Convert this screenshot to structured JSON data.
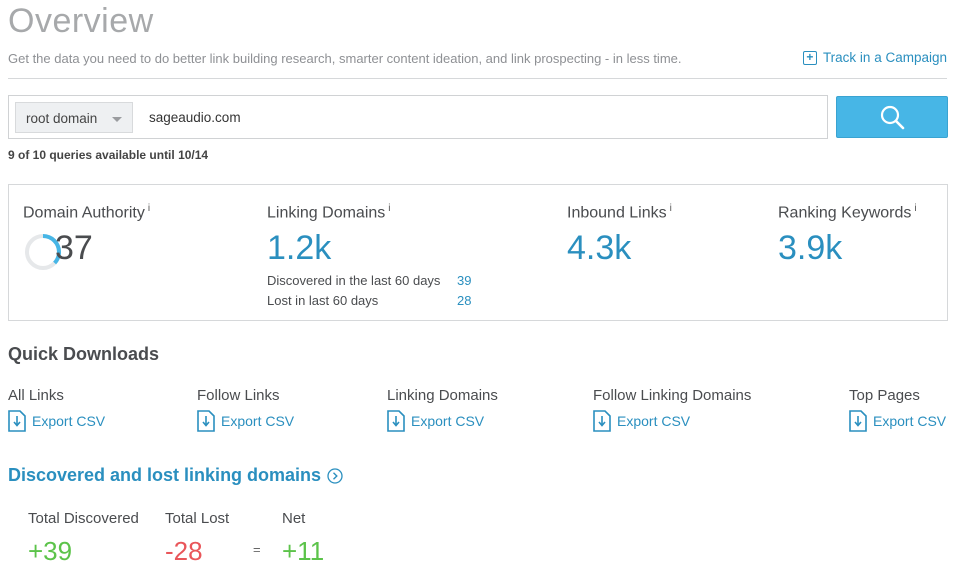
{
  "header": {
    "title": "Overview",
    "subtitle": "Get the data you need to do better link building research, smarter content ideation, and link prospecting - in less time.",
    "track_label": "Track in a Campaign"
  },
  "search": {
    "scope": "root domain",
    "query": "sageaudio.com",
    "queries_remaining": "9 of 10 queries available until 10/14"
  },
  "metrics": {
    "domain_authority": {
      "label": "Domain Authority",
      "info": "i",
      "value": "37",
      "score": 37
    },
    "linking_domains": {
      "label": "Linking Domains",
      "info": "i",
      "value": "1.2k",
      "discovered_label": "Discovered in the last 60 days",
      "discovered_value": "39",
      "lost_label": "Lost in last 60 days",
      "lost_value": "28"
    },
    "inbound_links": {
      "label": "Inbound Links",
      "info": "i",
      "value": "4.3k"
    },
    "ranking_keywords": {
      "label": "Ranking Keywords",
      "info": "i",
      "value": "3.9k"
    }
  },
  "quick_downloads": {
    "title": "Quick Downloads",
    "items": [
      {
        "label": "All Links",
        "link": "Export CSV"
      },
      {
        "label": "Follow Links",
        "link": "Export CSV"
      },
      {
        "label": "Linking Domains",
        "link": "Export CSV"
      },
      {
        "label": "Follow Linking Domains",
        "link": "Export CSV"
      },
      {
        "label": "Top Pages",
        "link": "Export CSV"
      }
    ]
  },
  "discovered_lost": {
    "title": "Discovered and lost linking domains",
    "total_discovered_label": "Total Discovered",
    "total_discovered_value": "+39",
    "total_lost_label": "Total Lost",
    "total_lost_value": "-28",
    "equals": "=",
    "net_label": "Net",
    "net_value": "+11"
  },
  "colors": {
    "accent": "#2a8fbf",
    "search_button": "#47b6e6",
    "positive": "#5cc34a",
    "negative": "#e9565a"
  },
  "icons": {
    "track": "plus-square-icon",
    "search": "search-icon",
    "export": "download-file-icon",
    "info": "chevron-right-circle-icon"
  }
}
